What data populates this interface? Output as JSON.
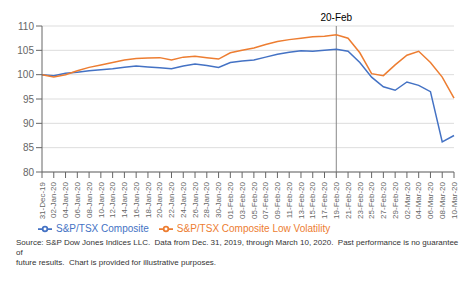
{
  "chart_data": {
    "type": "line",
    "categories": [
      "31-Dec-19",
      "02-Jan-20",
      "04-Jan-20",
      "06-Jan-20",
      "08-Jan-20",
      "10-Jan-20",
      "12-Jan-20",
      "14-Jan-20",
      "16-Jan-20",
      "18-Jan-20",
      "20-Jan-20",
      "22-Jan-20",
      "24-Jan-20",
      "26-Jan-20",
      "28-Jan-20",
      "30-Jan-20",
      "01-Feb-20",
      "03-Feb-20",
      "05-Feb-20",
      "07-Feb-20",
      "09-Feb-20",
      "11-Feb-20",
      "13-Feb-20",
      "15-Feb-20",
      "17-Feb-20",
      "19-Feb-20",
      "21-Feb-20",
      "23-Feb-20",
      "25-Feb-20",
      "27-Feb-20",
      "29-Feb-20",
      "02-Mar-20",
      "04-Mar-20",
      "06-Mar-20",
      "08-Mar-20",
      "10-Mar-20"
    ],
    "series": [
      {
        "name": "S&P/TSX Composite",
        "color": "#4472c4",
        "values": [
          100.0,
          99.8,
          100.3,
          100.5,
          100.8,
          101.0,
          101.2,
          101.5,
          101.8,
          101.6,
          101.4,
          101.2,
          101.8,
          102.2,
          101.9,
          101.5,
          102.5,
          102.8,
          103.0,
          103.6,
          104.2,
          104.6,
          104.9,
          104.8,
          105.0,
          105.2,
          104.8,
          102.5,
          99.5,
          97.5,
          96.8,
          98.5,
          97.8,
          96.5,
          86.2,
          87.5
        ]
      },
      {
        "name": "S&P/TSX Composite Low Volatility",
        "color": "#ed7d31",
        "values": [
          100.0,
          99.5,
          100.0,
          100.8,
          101.5,
          102.0,
          102.5,
          103.0,
          103.3,
          103.4,
          103.5,
          103.0,
          103.6,
          103.8,
          103.5,
          103.2,
          104.5,
          105.0,
          105.5,
          106.2,
          106.8,
          107.2,
          107.5,
          107.8,
          107.9,
          108.2,
          107.5,
          104.5,
          100.2,
          99.8,
          102.0,
          104.0,
          104.8,
          102.5,
          99.5,
          95.2
        ]
      }
    ],
    "ylim": [
      80,
      110
    ],
    "yticks": [
      80,
      85,
      90,
      95,
      100,
      105,
      110
    ],
    "grid": true,
    "legend": "bottom",
    "annotations": [
      {
        "text": "20-Feb",
        "x": "19-Feb-20"
      }
    ],
    "source": "Source: S&P Dow Jones Indices LLC.  Data from Dec. 31, 2019, through March 10, 2020.  Past performance is no guarantee of\nfuture results.  Chart is provided for illustrative purposes."
  }
}
